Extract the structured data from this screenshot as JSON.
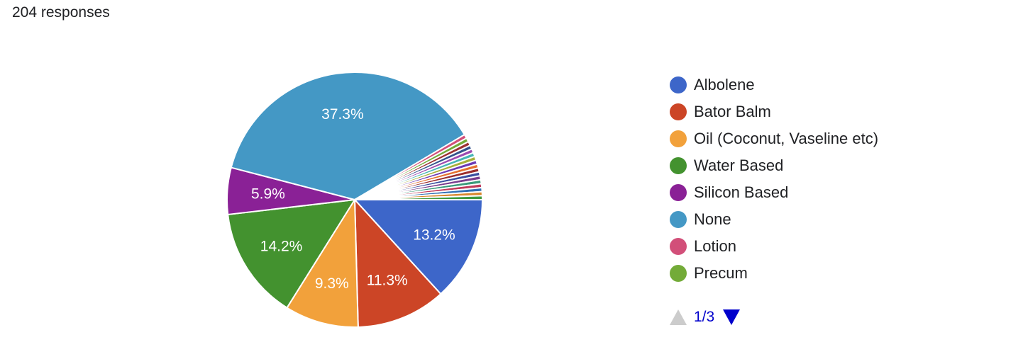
{
  "header": {
    "response_count": "204 responses"
  },
  "chart_data": {
    "type": "pie",
    "title": "",
    "total": 204,
    "slices": [
      {
        "label": "Albolene",
        "percent": 13.2,
        "color": "#3d66c9",
        "show_label": true
      },
      {
        "label": "Bator Balm",
        "percent": 11.3,
        "color": "#cc4526",
        "show_label": true
      },
      {
        "label": "Oil (Coconut, Vaseline etc)",
        "percent": 9.3,
        "color": "#f2a13b",
        "show_label": true
      },
      {
        "label": "Water Based",
        "percent": 14.2,
        "color": "#43922f",
        "show_label": true
      },
      {
        "label": "Silicon Based",
        "percent": 5.9,
        "color": "#8a2196",
        "show_label": true
      },
      {
        "label": "None",
        "percent": 37.3,
        "color": "#4498c5",
        "show_label": true
      },
      {
        "label": "Lotion",
        "percent": 0.5,
        "color": "#d24f79",
        "show_label": false
      },
      {
        "label": "Precum",
        "percent": 0.5,
        "color": "#73ab38",
        "show_label": false
      },
      {
        "label": "",
        "percent": 0.5,
        "color": "#9c3232",
        "show_label": false
      },
      {
        "label": "",
        "percent": 0.5,
        "color": "#33528c",
        "show_label": false
      },
      {
        "label": "",
        "percent": 0.5,
        "color": "#9d4ab0",
        "show_label": false
      },
      {
        "label": "",
        "percent": 0.5,
        "color": "#47b5b5",
        "show_label": false
      },
      {
        "label": "",
        "percent": 0.5,
        "color": "#a8b03a",
        "show_label": false
      },
      {
        "label": "",
        "percent": 0.5,
        "color": "#6d3ab5",
        "show_label": false
      },
      {
        "label": "",
        "percent": 0.5,
        "color": "#e5702f",
        "show_label": false
      },
      {
        "label": "",
        "percent": 0.5,
        "color": "#9b2d2d",
        "show_label": false
      },
      {
        "label": "",
        "percent": 0.5,
        "color": "#3a4fa0",
        "show_label": false
      },
      {
        "label": "",
        "percent": 0.5,
        "color": "#7a3d8e",
        "show_label": false
      },
      {
        "label": "",
        "percent": 0.5,
        "color": "#3a9a7a",
        "show_label": false
      },
      {
        "label": "",
        "percent": 0.5,
        "color": "#c03a5a",
        "show_label": false
      },
      {
        "label": "",
        "percent": 0.5,
        "color": "#2f6fb5",
        "show_label": false
      },
      {
        "label": "",
        "percent": 0.5,
        "color": "#d9882d",
        "show_label": false
      },
      {
        "label": "",
        "percent": 0.5,
        "color": "#3f9a3f",
        "show_label": false
      }
    ],
    "legend": {
      "position": "right",
      "visible_items": [
        "Albolene",
        "Bator Balm",
        "Oil (Coconut, Vaseline etc)",
        "Water Based",
        "Silicon Based",
        "None",
        "Lotion",
        "Precum"
      ],
      "page_text": "1/3"
    }
  },
  "icons": {
    "prev": "triangle-up-icon",
    "next": "triangle-down-icon"
  }
}
